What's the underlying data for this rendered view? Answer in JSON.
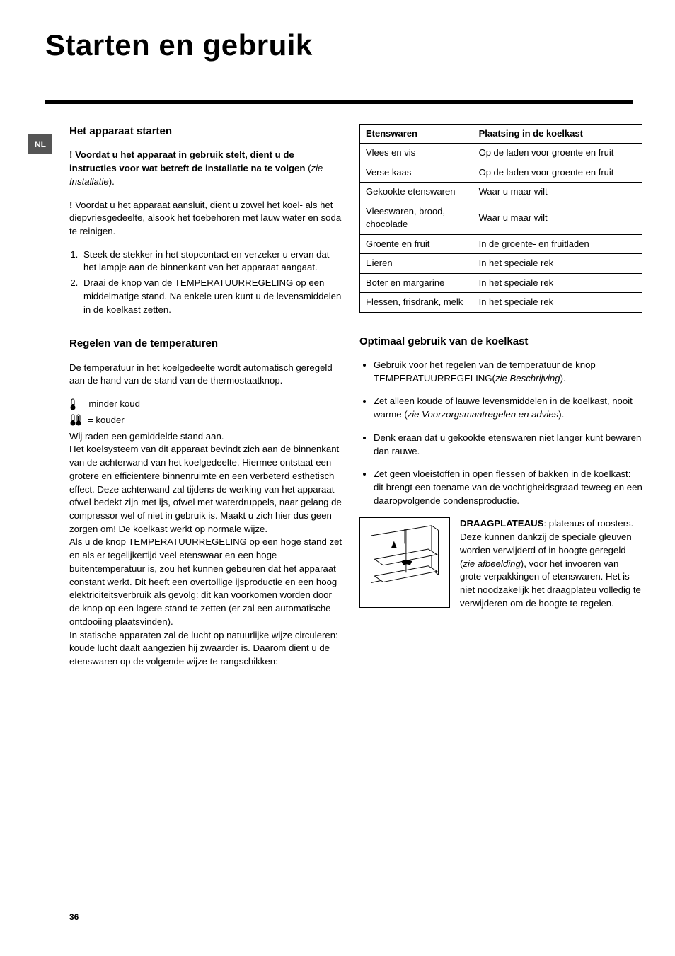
{
  "lang_tab": "NL",
  "page_title": "Starten en gebruik",
  "page_number": "36",
  "left": {
    "h_start": "Het apparaat starten",
    "warn_lead": "!",
    "warn_text": " Voordat u het apparaat in gebruik stelt, dient u de instructies voor wat betreft de installatie na te volgen ",
    "warn_ref": "zie Installatie",
    "pre_clean_lead": "!",
    "pre_clean_text": " Voordat u het apparaat aansluit, dient u zowel het koel- als het diepvriesgedeelte, alsook het toebehoren met lauw water en soda te reinigen.",
    "steps": [
      "Steek de stekker in het stopcontact en verzeker u ervan dat het lampje aan de binnenkant van het apparaat aangaat.",
      "Draai de knop van de TEMPERATUURREGELING op een middelmatige stand. Na enkele uren kunt u de levensmiddelen in de koelkast zetten."
    ],
    "h_temp": "Regelen van de temperaturen",
    "temp_intro": "De temperatuur in het koelgedeelte wordt automatisch geregeld aan de hand van de stand van de thermostaatknop.",
    "thermo_low": " = minder koud",
    "thermo_high": " = kouder",
    "cooling_para": "Wij raden een gemiddelde stand aan.\nHet koelsysteem van dit apparaat bevindt zich aan de binnenkant van de achterwand van het koelgedeelte. Hiermee ontstaat een grotere en efficiëntere binnenruimte en een verbeterd esthetisch effect. Deze achterwand zal tijdens de werking van het apparaat ofwel bedekt zijn met ijs, ofwel met waterdruppels, naar gelang de compressor wel of niet in gebruik is. Maakt u zich hier dus geen zorgen om! De koelkast werkt op normale wijze.\nAls u de knop TEMPERATUURREGELING op een hoge stand zet en als er tegelijkertijd veel etenswaar en een hoge buitentemperatuur is, zou het kunnen gebeuren dat het apparaat constant werkt. Dit heeft een overtollige ijsproductie en een hoog elektriciteitsverbruik als gevolg: dit kan voorkomen worden door de knop op een lagere stand te zetten (er zal een automatische ontdooiing plaatsvinden).\nIn statische apparaten zal de lucht op natuurlijke wijze circuleren: koude lucht daalt aangezien hij zwaarder is. Daarom dient u de etenswaren op de volgende wijze te rangschikken:"
  },
  "right": {
    "table": {
      "col1": "Etenswaren",
      "col2": "Plaatsing in de koelkast",
      "rows": [
        [
          "Vlees en vis",
          "Op de laden voor groente en fruit"
        ],
        [
          "Verse kaas",
          "Op de laden voor groente en fruit"
        ],
        [
          "Gekookte etenswaren",
          "Waar u maar wilt"
        ],
        [
          "Vleeswaren, brood, chocolade",
          "Waar u maar wilt"
        ],
        [
          "Groente en fruit",
          "In de groente- en fruitladen"
        ],
        [
          "Eieren",
          "In het speciale rek"
        ],
        [
          "Boter en margarine",
          "In het speciale rek"
        ],
        [
          "Flessen, frisdrank, melk",
          "In het speciale rek"
        ]
      ]
    },
    "h_optimal": "Optimaal gebruik van de koelkast",
    "bullets": [
      {
        "pre": "Gebruik voor het regelen van de temperatuur de knop TEMPERATUURREGELING(",
        "ital": "zie Beschrijving",
        "post": ")."
      },
      {
        "pre": "Zet alleen koude of lauwe levensmiddelen in de koelkast, nooit warme (",
        "ital": "zie Voorzorgsmaatregelen en advies",
        "post": ")."
      },
      {
        "pre": "Denk eraan dat u gekookte etenswaren niet langer kunt bewaren dan rauwe.",
        "ital": "",
        "post": ""
      },
      {
        "pre": "Zet geen vloeistoffen in open flessen of bakken in de koelkast: dit brengt een toename van de vochtigheidsgraad teweeg en een daaropvolgende condensproductie.",
        "ital": "",
        "post": ""
      }
    ],
    "shelf_bold": "DRAAGPLATEAUS",
    "shelf_pre": ": plateaus of roosters. Deze kunnen dankzij de speciale gleuven worden verwijderd of in hoogte geregeld (",
    "shelf_ital": "zie afbeelding",
    "shelf_post": "), voor het invoeren van grote verpakkingen of etenswaren. Het is niet noodzakelijk het draagplateu volledig te verwijderen om de hoogte te regelen."
  }
}
